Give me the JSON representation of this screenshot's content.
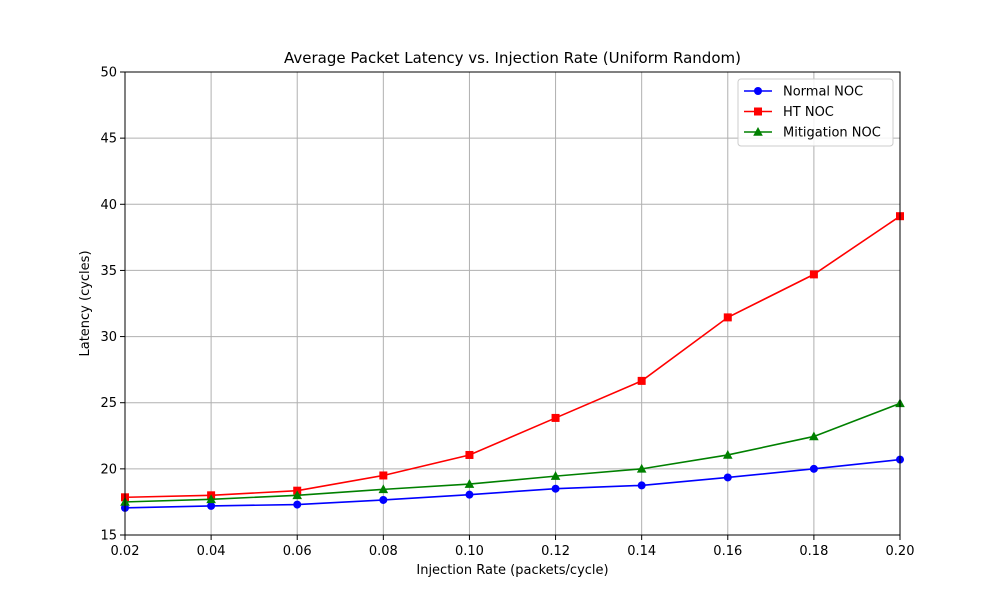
{
  "chart_data": {
    "type": "line",
    "title": "Average Packet Latency vs. Injection Rate (Uniform Random)",
    "xlabel": "Injection Rate (packets/cycle)",
    "ylabel": "Latency (cycles)",
    "xlim": [
      0.02,
      0.2
    ],
    "ylim": [
      15,
      50
    ],
    "x": [
      0.02,
      0.04,
      0.06,
      0.08,
      0.1,
      0.12,
      0.14,
      0.16,
      0.18,
      0.2
    ],
    "xticks": [
      "0.02",
      "0.04",
      "0.06",
      "0.08",
      "0.10",
      "0.12",
      "0.14",
      "0.16",
      "0.18",
      "0.20"
    ],
    "yticks": [
      "15",
      "20",
      "25",
      "30",
      "35",
      "40",
      "45",
      "50"
    ],
    "grid": true,
    "legend_position": "top-right",
    "series": [
      {
        "name": "Normal NOC",
        "color": "#0000ff",
        "marker": "circle",
        "values": [
          17.05,
          17.2,
          17.3,
          17.65,
          18.05,
          18.5,
          18.75,
          19.35,
          20.0,
          20.7
        ]
      },
      {
        "name": "HT NOC",
        "color": "#ff0000",
        "marker": "square",
        "values": [
          17.85,
          18.0,
          18.35,
          19.5,
          21.05,
          23.85,
          26.65,
          31.45,
          34.7,
          39.1
        ]
      },
      {
        "name": "Mitigation NOC",
        "color": "#008000",
        "marker": "triangle",
        "values": [
          17.5,
          17.7,
          18.0,
          18.45,
          18.85,
          19.45,
          20.0,
          21.05,
          22.45,
          24.95
        ]
      }
    ]
  }
}
